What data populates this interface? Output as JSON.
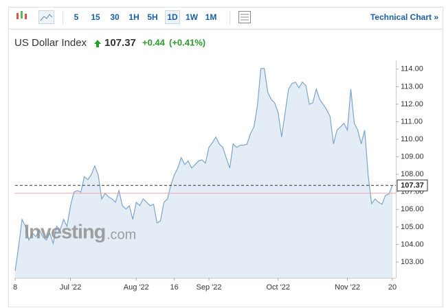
{
  "toolbar": {
    "intervals": [
      "5",
      "15",
      "30",
      "1H",
      "5H",
      "1D",
      "1W",
      "1M"
    ],
    "active": "1D",
    "technical_link": "Technical Chart »"
  },
  "header": {
    "title": "US Dollar Index",
    "price": "107.37",
    "change": "+0.44",
    "change_pct": "(+0.41%)"
  },
  "watermark": {
    "brand": "Investing",
    "suffix": ".com"
  },
  "chart_data": {
    "type": "area",
    "color": "#7ba4cc",
    "fill": "#e4edf6",
    "x": [
      0,
      1,
      2,
      3,
      4,
      5,
      6,
      7,
      8,
      9,
      10,
      11,
      12,
      13,
      14,
      15,
      16,
      17,
      18,
      19,
      20,
      21,
      22,
      23,
      24,
      25,
      26,
      27,
      28,
      29,
      30,
      31,
      32,
      33,
      34,
      35,
      36,
      37,
      38,
      39,
      40,
      41,
      42,
      43,
      44,
      45,
      46,
      47,
      48,
      49,
      50,
      51,
      52,
      53,
      54,
      55,
      56,
      57,
      58,
      59,
      60,
      61,
      62,
      63,
      64,
      65,
      66,
      67,
      68,
      69,
      70,
      71,
      72,
      73,
      74,
      75,
      76,
      77,
      78,
      79,
      80,
      81,
      82,
      83,
      84,
      85,
      86,
      87,
      88,
      89,
      90,
      91,
      92,
      93,
      94,
      95,
      96,
      97,
      98,
      99,
      100,
      101,
      102,
      103,
      104,
      105,
      106,
      107,
      108,
      109
    ],
    "values": [
      102.49,
      103.86,
      105.43,
      105.04,
      104.25,
      104.65,
      104.45,
      104.84,
      104.45,
      104.25,
      104.65,
      104.06,
      105.04,
      104.84,
      105.43,
      105.04,
      106.21,
      106.99,
      107.07,
      106.99,
      107.86,
      107.7,
      107.97,
      108.48,
      107.97,
      106.6,
      106.92,
      106.72,
      106.6,
      106.41,
      107.07,
      106.21,
      106.02,
      106.21,
      105.43,
      106.41,
      106.21,
      106.6,
      106.41,
      106.21,
      106.29,
      105.23,
      105.35,
      106.41,
      106.6,
      107.39,
      107.97,
      108.36,
      108.95,
      108.56,
      108.76,
      108.36,
      108.56,
      108.76,
      108.83,
      108.64,
      109.54,
      109.81,
      110.13,
      109.73,
      109.54,
      108.95,
      108.36,
      109.73,
      109.54,
      109.66,
      109.66,
      109.73,
      110.32,
      110.71,
      111.89,
      114.04,
      114.04,
      112.67,
      112.28,
      112.08,
      111.5,
      110.13,
      111.5,
      112.86,
      113.18,
      113.26,
      112.94,
      113.26,
      113.06,
      112.0,
      112.08,
      112.86,
      112.28,
      112.0,
      111.69,
      111.3,
      109.73,
      110.52,
      110.71,
      110.91,
      110.52,
      112.86,
      110.91,
      110.52,
      109.73,
      110.52,
      107.97,
      106.33,
      106.6,
      106.41,
      106.29,
      106.8,
      106.88,
      107.37
    ],
    "xlim": [
      0,
      110
    ],
    "xticks": [
      {
        "value": 0,
        "label": "8"
      },
      {
        "value": 16,
        "label": "Jul '22"
      },
      {
        "value": 35,
        "label": "Aug '22"
      },
      {
        "value": 46,
        "label": "16"
      },
      {
        "value": 56,
        "label": "Sep '22"
      },
      {
        "value": 76,
        "label": "Oct '22"
      },
      {
        "value": 96,
        "label": "Nov '22"
      },
      {
        "value": 109,
        "label": "20"
      }
    ],
    "ylim": [
      102.1,
      114.5
    ],
    "yticks": [
      {
        "value": 103,
        "label": "103.00"
      },
      {
        "value": 104,
        "label": "104.00"
      },
      {
        "value": 105,
        "label": "105.00"
      },
      {
        "value": 106,
        "label": "106.00"
      },
      {
        "value": 107,
        "label": "107.00"
      },
      {
        "value": 108,
        "label": "108.00"
      },
      {
        "value": 109,
        "label": "109.00"
      },
      {
        "value": 110,
        "label": "110.00"
      },
      {
        "value": 111,
        "label": "111.00"
      },
      {
        "value": 112,
        "label": "112.00"
      },
      {
        "value": 113,
        "label": "113.00"
      },
      {
        "value": 114,
        "label": "114.00"
      }
    ],
    "last_value": 107.37,
    "reference_value": 106.92,
    "reference_color": "#f2a5a5"
  }
}
